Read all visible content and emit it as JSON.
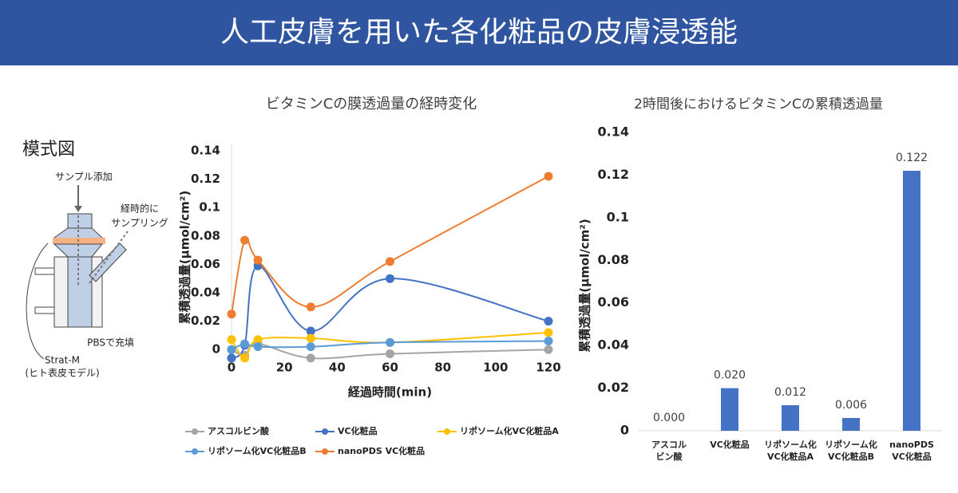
{
  "header": {
    "title": "人工皮膚を用いた各化粧品の皮膚浸透能"
  },
  "diagram": {
    "title": "模式図",
    "sample_add": "サンプル添加",
    "sampling": [
      "経時的に",
      "サンプリング"
    ],
    "pbs": "PBSで充填",
    "membrane": [
      "Strat-M",
      "(ヒト表皮モデル)"
    ]
  },
  "chart_data": [
    {
      "type": "line",
      "title": "ビタミンCの膜透過量の経時変化",
      "x_label": "経過時間(min)",
      "y_label": "累積透過量(μmol/cm²)",
      "x": [
        0,
        5,
        10,
        30,
        60,
        120
      ],
      "xlim": [
        0,
        120
      ],
      "xticks": [
        0,
        20,
        40,
        60,
        80,
        100,
        120
      ],
      "ylim": [
        -0.01,
        0.14
      ],
      "yticks": [
        0,
        0.02,
        0.04,
        0.06,
        0.08,
        0.1,
        0.12,
        0.14
      ],
      "smooth": true,
      "legend": "bottom",
      "series": [
        {
          "name": "アスコルビン酸",
          "color": "#a5a5a5",
          "values": [
            0,
            -0.004,
            0.004,
            -0.006,
            -0.003,
            0
          ]
        },
        {
          "name": "VC化粧品",
          "color": "#4472c4",
          "values": [
            -0.006,
            0.003,
            0.059,
            0.013,
            0.05,
            0.02
          ]
        },
        {
          "name": "リポソーム化VC化粧品A",
          "color": "#ffc000",
          "values": [
            0.007,
            -0.006,
            0.007,
            0.008,
            0.005,
            0.012
          ]
        },
        {
          "name": "リポソーム化VC化粧品B",
          "color": "#5b9bd5",
          "values": [
            0,
            0.004,
            0.002,
            0.002,
            0.005,
            0.006
          ]
        },
        {
          "name": "nanoPDS VC化粧品",
          "color": "#ed7d31",
          "values": [
            0.025,
            0.077,
            0.063,
            0.03,
            0.062,
            0.122
          ]
        }
      ]
    },
    {
      "type": "bar",
      "title": "2時間後におけるビタミンCの累積透過量",
      "y_label": "累積透過量(μmol/cm²)",
      "categories": [
        [
          "アスコル",
          "ビン酸"
        ],
        [
          "VC化粧品"
        ],
        [
          "リポソーム化",
          "VC化粧品A"
        ],
        [
          "リポソーム化",
          "VC化粧品B"
        ],
        [
          "nanoPDS",
          "VC化粧品"
        ]
      ],
      "values": [
        0,
        0.02,
        0.012,
        0.006,
        0.122
      ],
      "value_labels": [
        "0.000",
        "0.020",
        "0.012",
        "0.006",
        "0.122"
      ],
      "color": "#4472c4",
      "ylim": [
        0,
        0.14
      ],
      "yticks": [
        0,
        0.02,
        0.04,
        0.06,
        0.08,
        0.1,
        0.12,
        0.14
      ]
    }
  ]
}
